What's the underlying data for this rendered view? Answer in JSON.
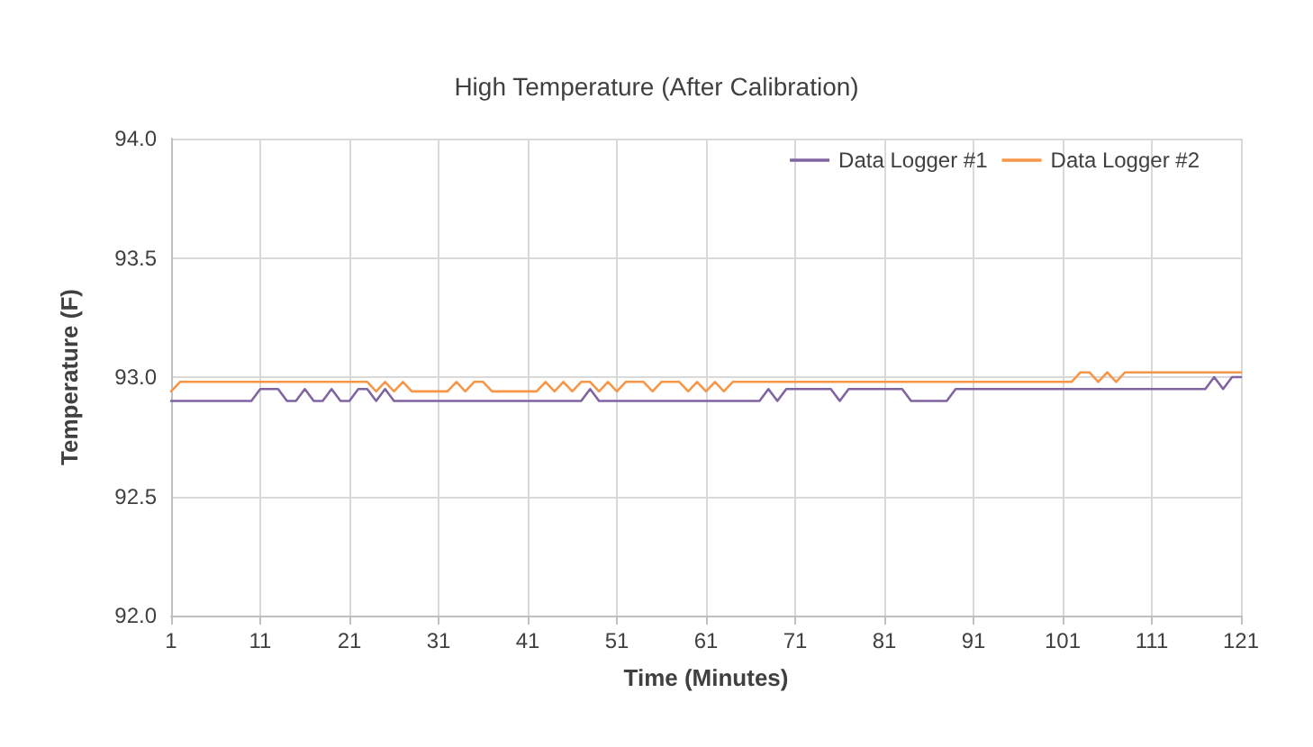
{
  "chart_data": {
    "type": "line",
    "title": "High Temperature (After Calibration)",
    "xlabel": "Time (Minutes)",
    "ylabel": "Temperature (F)",
    "x": [
      1,
      2,
      3,
      4,
      5,
      6,
      7,
      8,
      9,
      10,
      11,
      12,
      13,
      14,
      15,
      16,
      17,
      18,
      19,
      20,
      21,
      22,
      23,
      24,
      25,
      26,
      27,
      28,
      29,
      30,
      31,
      32,
      33,
      34,
      35,
      36,
      37,
      38,
      39,
      40,
      41,
      42,
      43,
      44,
      45,
      46,
      47,
      48,
      49,
      50,
      51,
      52,
      53,
      54,
      55,
      56,
      57,
      58,
      59,
      60,
      61,
      62,
      63,
      64,
      65,
      66,
      67,
      68,
      69,
      70,
      71,
      72,
      73,
      74,
      75,
      76,
      77,
      78,
      79,
      80,
      81,
      82,
      83,
      84,
      85,
      86,
      87,
      88,
      89,
      90,
      91,
      92,
      93,
      94,
      95,
      96,
      97,
      98,
      99,
      100,
      101,
      102,
      103,
      104,
      105,
      106,
      107,
      108,
      109,
      110,
      111,
      112,
      113,
      114,
      115,
      116,
      117,
      118,
      119,
      120,
      121
    ],
    "series": [
      {
        "name": "Data Logger #1",
        "color": "#8064a2",
        "values": [
          92.9,
          92.9,
          92.9,
          92.9,
          92.9,
          92.9,
          92.9,
          92.9,
          92.9,
          92.9,
          92.95,
          92.95,
          92.95,
          92.9,
          92.9,
          92.95,
          92.9,
          92.9,
          92.95,
          92.9,
          92.9,
          92.95,
          92.95,
          92.9,
          92.95,
          92.9,
          92.9,
          92.9,
          92.9,
          92.9,
          92.9,
          92.9,
          92.9,
          92.9,
          92.9,
          92.9,
          92.9,
          92.9,
          92.9,
          92.9,
          92.9,
          92.9,
          92.9,
          92.9,
          92.9,
          92.9,
          92.9,
          92.95,
          92.9,
          92.9,
          92.9,
          92.9,
          92.9,
          92.9,
          92.9,
          92.9,
          92.9,
          92.9,
          92.9,
          92.9,
          92.9,
          92.9,
          92.9,
          92.9,
          92.9,
          92.9,
          92.9,
          92.95,
          92.9,
          92.95,
          92.95,
          92.95,
          92.95,
          92.95,
          92.95,
          92.9,
          92.95,
          92.95,
          92.95,
          92.95,
          92.95,
          92.95,
          92.95,
          92.9,
          92.9,
          92.9,
          92.9,
          92.9,
          92.95,
          92.95,
          92.95,
          92.95,
          92.95,
          92.95,
          92.95,
          92.95,
          92.95,
          92.95,
          92.95,
          92.95,
          92.95,
          92.95,
          92.95,
          92.95,
          92.95,
          92.95,
          92.95,
          92.95,
          92.95,
          92.95,
          92.95,
          92.95,
          92.95,
          92.95,
          92.95,
          92.95,
          92.95,
          93.0,
          92.95,
          93.0,
          93.0
        ]
      },
      {
        "name": "Data Logger #2",
        "color": "#f79646",
        "values": [
          92.94,
          92.98,
          92.98,
          92.98,
          92.98,
          92.98,
          92.98,
          92.98,
          92.98,
          92.98,
          92.98,
          92.98,
          92.98,
          92.98,
          92.98,
          92.98,
          92.98,
          92.98,
          92.98,
          92.98,
          92.98,
          92.98,
          92.98,
          92.94,
          92.98,
          92.94,
          92.98,
          92.94,
          92.94,
          92.94,
          92.94,
          92.94,
          92.98,
          92.94,
          92.98,
          92.98,
          92.94,
          92.94,
          92.94,
          92.94,
          92.94,
          92.94,
          92.98,
          92.94,
          92.98,
          92.94,
          92.98,
          92.98,
          92.94,
          92.98,
          92.94,
          92.98,
          92.98,
          92.98,
          92.94,
          92.98,
          92.98,
          92.98,
          92.94,
          92.98,
          92.94,
          92.98,
          92.94,
          92.98,
          92.98,
          92.98,
          92.98,
          92.98,
          92.98,
          92.98,
          92.98,
          92.98,
          92.98,
          92.98,
          92.98,
          92.98,
          92.98,
          92.98,
          92.98,
          92.98,
          92.98,
          92.98,
          92.98,
          92.98,
          92.98,
          92.98,
          92.98,
          92.98,
          92.98,
          92.98,
          92.98,
          92.98,
          92.98,
          92.98,
          92.98,
          92.98,
          92.98,
          92.98,
          92.98,
          92.98,
          92.98,
          92.98,
          93.02,
          93.02,
          92.98,
          93.02,
          92.98,
          93.02,
          93.02,
          93.02,
          93.02,
          93.02,
          93.02,
          93.02,
          93.02,
          93.02,
          93.02,
          93.02,
          93.02,
          93.02,
          93.02
        ]
      }
    ],
    "xlim": [
      1,
      121
    ],
    "xticks": [
      1,
      11,
      21,
      31,
      41,
      51,
      61,
      71,
      81,
      91,
      101,
      111,
      121
    ],
    "ylim": [
      92,
      94
    ],
    "yticks": [
      {
        "value": 92,
        "label": "92.0"
      },
      {
        "value": 92.5,
        "label": "92.5"
      },
      {
        "value": 93,
        "label": "93.0"
      },
      {
        "value": 93.5,
        "label": "93.5"
      },
      {
        "value": 94,
        "label": "94.0"
      }
    ],
    "grid": true,
    "legend": "top right",
    "marker": "none",
    "line_style": "solid"
  }
}
